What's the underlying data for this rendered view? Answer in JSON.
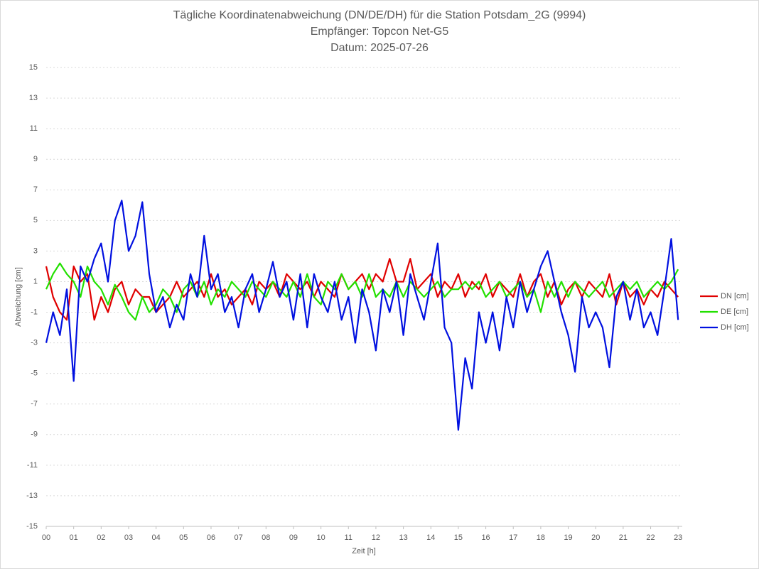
{
  "chart_data": {
    "type": "line",
    "title": "Tägliche Koordinatenabweichung (DN/DE/DH) für die Station Potsdam_2G (9994)",
    "subtitle": [
      "Empfänger: Topcon Net-G5",
      "Datum: 2025-07-26"
    ],
    "xlabel": "Zeit [h]",
    "ylabel": "Abweichung [cm]",
    "x": [
      0,
      0.25,
      0.5,
      0.75,
      1,
      1.25,
      1.5,
      1.75,
      2,
      2.25,
      2.5,
      2.75,
      3,
      3.25,
      3.5,
      3.75,
      4,
      4.25,
      4.5,
      4.75,
      5,
      5.25,
      5.5,
      5.75,
      6,
      6.25,
      6.5,
      6.75,
      7,
      7.25,
      7.5,
      7.75,
      8,
      8.25,
      8.5,
      8.75,
      9,
      9.25,
      9.5,
      9.75,
      10,
      10.25,
      10.5,
      10.75,
      11,
      11.25,
      11.5,
      11.75,
      12,
      12.25,
      12.5,
      12.75,
      13,
      13.25,
      13.5,
      13.75,
      14,
      14.25,
      14.5,
      14.75,
      15,
      15.25,
      15.5,
      15.75,
      16,
      16.25,
      16.5,
      16.75,
      17,
      17.25,
      17.5,
      17.75,
      18,
      18.25,
      18.5,
      18.75,
      19,
      19.25,
      19.5,
      19.75,
      20,
      20.25,
      20.5,
      20.75,
      21,
      21.25,
      21.5,
      21.75,
      22,
      22.25,
      22.5,
      22.75,
      23
    ],
    "series": [
      {
        "name": "DN [cm]",
        "color": "#e00000",
        "values": [
          2,
          0,
          -1,
          -1.5,
          2,
          1,
          1.5,
          -1.5,
          0,
          -1,
          0.5,
          1,
          -0.5,
          0.5,
          0,
          0,
          -1,
          -0.5,
          0,
          1,
          0,
          0.5,
          1,
          0,
          1.5,
          0,
          0.5,
          -0.5,
          0,
          0.5,
          -0.5,
          1,
          0.5,
          1,
          0,
          1.5,
          1,
          0.5,
          1,
          0,
          1,
          0.5,
          0,
          1.5,
          0.5,
          1,
          1.5,
          0.5,
          1.5,
          1,
          2.5,
          1,
          1,
          2.5,
          0.5,
          1,
          1.5,
          0,
          1,
          0.5,
          1.5,
          0,
          1,
          0.5,
          1.5,
          0,
          1,
          0.5,
          0,
          1.5,
          0,
          1,
          1.5,
          0,
          1,
          -0.5,
          0.5,
          1,
          0,
          1,
          0.5,
          0,
          1.5,
          -0.5,
          1,
          0,
          0.5,
          -0.5,
          0.5,
          0,
          1,
          0.5,
          0
        ]
      },
      {
        "name": "DE [cm]",
        "color": "#22e000",
        "values": [
          0.5,
          1.5,
          2.2,
          1.5,
          1,
          0,
          2,
          1,
          0.5,
          -0.5,
          0.8,
          0,
          -1,
          -1.5,
          0,
          -1,
          -0.5,
          0.5,
          0,
          -1,
          0.5,
          1,
          0,
          1,
          -0.5,
          0.5,
          0,
          1,
          0.5,
          0,
          1,
          0.5,
          0,
          1,
          0.5,
          0,
          1,
          0,
          1.5,
          0,
          -0.5,
          1,
          0.5,
          1.5,
          0.5,
          1,
          0,
          1.5,
          0,
          0.5,
          0,
          1,
          0,
          1,
          0.5,
          0,
          0.5,
          1,
          0,
          0.5,
          0.5,
          1,
          0.5,
          1,
          0,
          0.5,
          1,
          0,
          0.5,
          1,
          0,
          0.5,
          -1,
          1,
          0,
          1,
          0,
          1,
          0.5,
          0,
          0.5,
          1,
          0,
          0.5,
          1,
          0.5,
          1,
          0,
          0.5,
          1,
          0.5,
          1,
          1.8
        ]
      },
      {
        "name": "DH [cm]",
        "color": "#0010e0",
        "values": [
          -3,
          -1,
          -2.5,
          0.5,
          -5.5,
          2,
          1,
          2.5,
          3.5,
          1,
          5,
          6.3,
          3,
          4,
          6.2,
          1.5,
          -1,
          0,
          -2,
          -0.5,
          -1.5,
          1.5,
          0,
          4,
          0.5,
          1.5,
          -1,
          0,
          -2,
          0.5,
          1.5,
          -1,
          0.5,
          2.3,
          0,
          1,
          -1.5,
          1.5,
          -2,
          1.5,
          0,
          -1,
          1,
          -1.5,
          0,
          -3,
          0.5,
          -1,
          -3.5,
          0.5,
          -1,
          1,
          -2.5,
          1.5,
          0,
          -1.5,
          1,
          3.5,
          -2,
          -3,
          -8.7,
          -4,
          -6,
          -1,
          -3,
          -1,
          -3.5,
          0,
          -2,
          1,
          -1,
          0.5,
          2,
          3,
          1,
          -1,
          -2.5,
          -4.9,
          0,
          -2,
          -1,
          -2,
          -4.6,
          0,
          1,
          -1.5,
          0.5,
          -2,
          -1,
          -2.5,
          0.5,
          3.8,
          -1.5
        ]
      }
    ],
    "xlim": [
      0,
      23.15
    ],
    "xticks": [
      {
        "value": 0,
        "label": "00"
      },
      {
        "value": 1,
        "label": "01"
      },
      {
        "value": 2,
        "label": "02"
      },
      {
        "value": 3,
        "label": "03"
      },
      {
        "value": 4,
        "label": "04"
      },
      {
        "value": 5,
        "label": "05"
      },
      {
        "value": 6,
        "label": "06"
      },
      {
        "value": 7,
        "label": "07"
      },
      {
        "value": 8,
        "label": "08"
      },
      {
        "value": 9,
        "label": "09"
      },
      10,
      11,
      12,
      13,
      14,
      15,
      16,
      17,
      18,
      19,
      20,
      21,
      22,
      23
    ],
    "ylim": [
      -15,
      15
    ],
    "yticks": [
      -15,
      -13,
      -11,
      -9,
      -7,
      -5,
      -3,
      -1,
      1,
      3,
      5,
      7,
      9,
      11,
      13,
      15
    ],
    "grid": true,
    "legend": "right"
  }
}
